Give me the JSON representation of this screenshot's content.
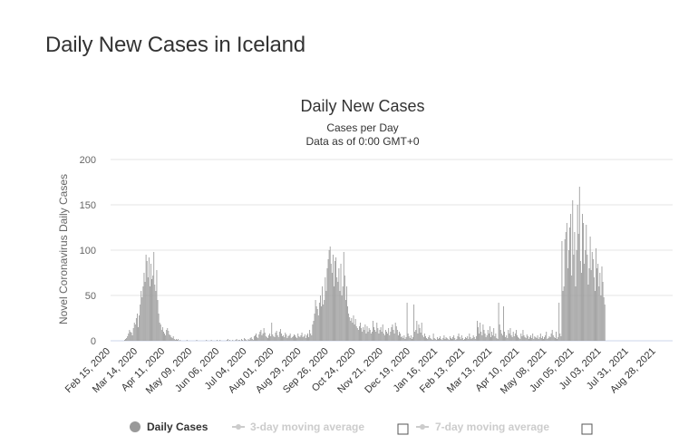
{
  "page": {
    "heading": "Daily New Cases in Iceland"
  },
  "chart_data": {
    "type": "bar",
    "title": "Daily New Cases",
    "subtitle_lines": [
      "Cases per Day",
      "Data as of 0:00 GMT+0"
    ],
    "ylabel": "Novel Coronavirus Daily Cases",
    "ylim": [
      0,
      200
    ],
    "yticks": [
      0,
      50,
      100,
      150,
      200
    ],
    "grid": true,
    "x_start": "2020-02-15",
    "x_end": "2021-09-13",
    "xtick_labels": [
      "Feb 15, 2020",
      "Mar 14, 2020",
      "Apr 11, 2020",
      "May 09, 2020",
      "Jun 06, 2020",
      "Jul 04, 2020",
      "Aug 01, 2020",
      "Aug 29, 2020",
      "Sep 26, 2020",
      "Oct 24, 2020",
      "Nov 21, 2020",
      "Dec 19, 2020",
      "Jan 16, 2021",
      "Feb 13, 2021",
      "Mar 13, 2021",
      "Apr 10, 2021",
      "May 08, 2021",
      "Jun 05, 2021",
      "Jul 03, 2021",
      "Jul 31, 2021",
      "Aug 28, 2021"
    ],
    "bar_color": "#999999",
    "series": [
      {
        "name": "Daily Cases",
        "values": [
          0,
          0,
          0,
          0,
          0,
          0,
          0,
          0,
          0,
          0,
          0,
          0,
          0,
          0,
          1,
          2,
          3,
          5,
          8,
          12,
          10,
          9,
          6,
          14,
          20,
          18,
          25,
          30,
          15,
          28,
          40,
          55,
          48,
          60,
          75,
          65,
          95,
          88,
          70,
          92,
          60,
          85,
          68,
          72,
          98,
          62,
          55,
          78,
          45,
          30,
          20,
          18,
          12,
          15,
          10,
          8,
          6,
          12,
          14,
          11,
          7,
          6,
          4,
          3,
          5,
          2,
          1,
          2,
          1,
          2,
          0,
          1,
          0,
          0,
          0,
          0,
          0,
          0,
          1,
          0,
          0,
          0,
          0,
          0,
          0,
          0,
          0,
          0,
          1,
          0,
          0,
          0,
          0,
          0,
          0,
          0,
          0,
          0,
          1,
          0,
          0,
          0,
          0,
          1,
          0,
          0,
          0,
          0,
          0,
          1,
          0,
          0,
          1,
          0,
          0,
          0,
          0,
          0,
          0,
          1,
          2,
          0,
          1,
          0,
          0,
          1,
          0,
          0,
          1,
          2,
          0,
          1,
          1,
          0,
          2,
          1,
          0,
          3,
          2,
          1,
          0,
          2,
          1,
          3,
          4,
          2,
          1,
          5,
          6,
          8,
          4,
          3,
          7,
          10,
          12,
          6,
          8,
          14,
          9,
          5,
          4,
          3,
          6,
          8,
          5,
          20,
          7,
          5,
          4,
          9,
          11,
          6,
          4,
          10,
          13,
          8,
          5,
          6,
          4,
          9,
          7,
          3,
          5,
          6,
          8,
          3,
          4,
          5,
          7,
          6,
          4,
          3,
          8,
          5,
          4,
          6,
          9,
          4,
          5,
          7,
          3,
          6,
          8,
          4,
          12,
          8,
          6,
          18,
          22,
          30,
          45,
          38,
          35,
          28,
          42,
          50,
          38,
          60,
          40,
          45,
          70,
          55,
          80,
          90,
          100,
          104,
          85,
          75,
          95,
          60,
          88,
          92,
          70,
          65,
          80,
          55,
          85,
          50,
          60,
          98,
          72,
          45,
          60,
          38,
          30,
          26,
          22,
          25,
          20,
          28,
          18,
          24,
          16,
          14,
          12,
          16,
          20,
          14,
          10,
          15,
          12,
          18,
          8,
          16,
          10,
          14,
          12,
          8,
          10,
          22,
          15,
          12,
          10,
          20,
          14,
          8,
          12,
          15,
          10,
          18,
          8,
          6,
          12,
          10,
          8,
          14,
          6,
          10,
          15,
          18,
          12,
          8,
          20,
          16,
          12,
          6,
          10,
          8,
          4,
          5,
          3,
          6,
          2,
          4,
          42,
          8,
          5,
          3,
          6,
          2,
          4,
          40,
          10,
          12,
          22,
          8,
          18,
          14,
          9,
          20,
          6,
          4,
          8,
          5,
          3,
          2,
          4,
          6,
          3,
          2,
          1,
          8,
          3,
          2,
          1,
          4,
          2,
          3,
          5,
          2,
          1,
          3,
          6,
          2,
          4,
          3,
          2,
          1,
          5,
          3,
          2,
          4,
          6,
          3,
          1,
          2,
          5,
          8,
          4,
          2,
          6,
          3,
          1,
          2,
          4,
          3,
          5,
          2,
          8,
          4,
          2,
          3,
          6,
          4,
          2,
          5,
          22,
          15,
          8,
          20,
          10,
          6,
          18,
          12,
          8,
          4,
          6,
          12,
          8,
          16,
          4,
          10,
          6,
          14,
          5,
          8,
          3,
          2,
          42,
          18,
          12,
          8,
          6,
          38,
          10,
          4,
          6,
          3,
          12,
          8,
          14,
          6,
          4,
          10,
          5,
          8,
          12,
          6,
          4,
          3,
          2,
          8,
          5,
          12,
          6,
          4,
          3,
          7,
          5,
          2,
          4,
          6,
          3,
          8,
          2,
          5,
          4,
          3,
          6,
          2,
          4,
          8,
          3,
          5,
          2,
          4,
          6,
          10,
          2,
          3,
          5,
          4,
          8,
          12,
          6,
          4,
          3,
          10,
          2,
          4,
          42,
          8,
          5,
          110,
          55,
          60,
          112,
          120,
          130,
          80,
          100,
          125,
          140,
          72,
          155,
          95,
          120,
          60,
          100,
          150,
          118,
          170,
          88,
          75,
          140,
          130,
          85,
          100,
          128,
          95,
          62,
          80,
          115,
          78,
          98,
          90,
          70,
          55,
          102,
          80,
          85,
          60,
          75,
          50,
          82,
          65,
          48,
          40
        ]
      },
      {
        "name": "3-day moving average"
      },
      {
        "name": "7-day moving average"
      }
    ],
    "legend": {
      "placement": "bottom",
      "items": [
        {
          "label": "Daily Cases",
          "active": true
        },
        {
          "label": "3-day moving average",
          "active": false
        },
        {
          "label": "7-day moving average",
          "active": false
        }
      ]
    }
  }
}
